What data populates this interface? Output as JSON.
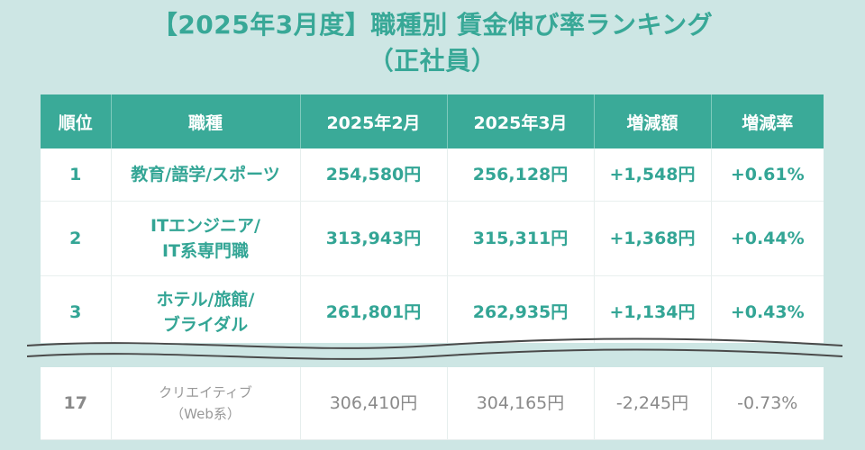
{
  "title": {
    "line1": "【2025年3月度】職種別 賃金伸び率ランキング",
    "line2": "（正社員）"
  },
  "table": {
    "headers": [
      "順位",
      "職種",
      "2025年2月",
      "2025年3月",
      "増減額",
      "増減率"
    ],
    "rows": [
      {
        "rank": "1",
        "occupation": [
          "教育/語学/スポーツ"
        ],
        "feb": "254,580円",
        "mar": "256,128円",
        "diff": "+1,548円",
        "rate": "+0.61%"
      },
      {
        "rank": "2",
        "occupation": [
          "ITエンジニア/",
          "IT系専門職"
        ],
        "feb": "313,943円",
        "mar": "315,311円",
        "diff": "+1,368円",
        "rate": "+0.44%"
      },
      {
        "rank": "3",
        "occupation": [
          "ホテル/旅館/",
          "ブライダル"
        ],
        "feb": "261,801円",
        "mar": "262,935円",
        "diff": "+1,134円",
        "rate": "+0.43%"
      },
      {
        "rank": "17",
        "occupation": [
          "クリエイティブ",
          "（Web系）"
        ],
        "feb": "306,410円",
        "mar": "304,165円",
        "diff": "-2,245円",
        "rate": "-0.73%"
      }
    ]
  },
  "colors": {
    "accent": "#3aaa98",
    "accent_text": "#33a595",
    "background": "#cde6e4",
    "muted_text": "#8a8a8a"
  }
}
